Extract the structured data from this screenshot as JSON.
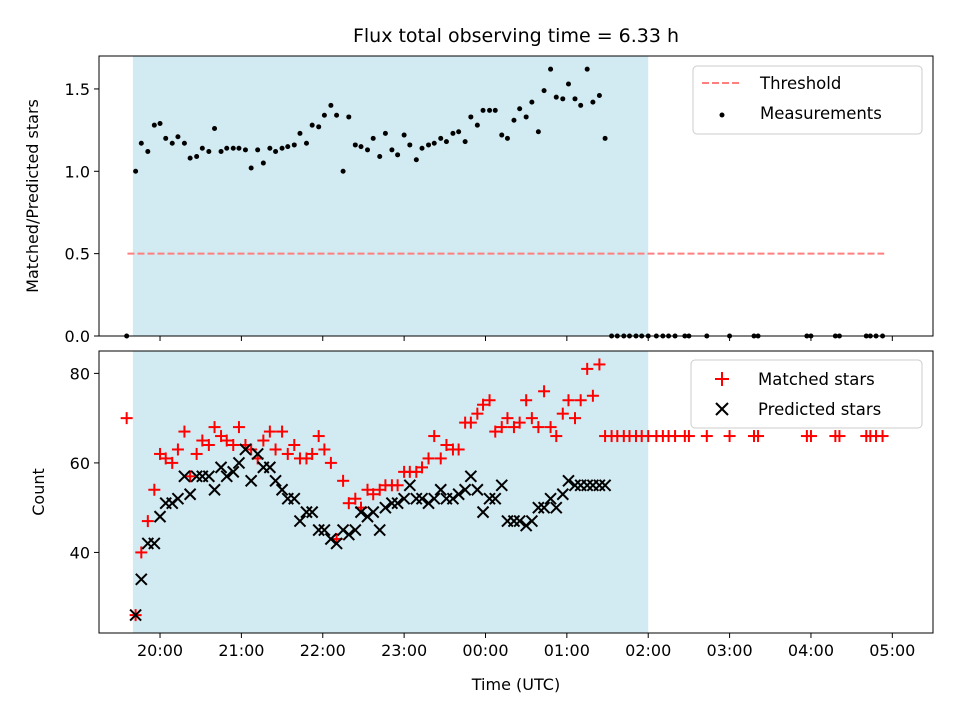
{
  "chart_data": [
    {
      "type": "scatter",
      "title": "Flux total observing time = 6.33 h",
      "xlabel": "",
      "ylabel": "Matched/Predicted stars",
      "xlim": [
        19.25,
        29.5
      ],
      "ylim": [
        0,
        1.7
      ],
      "x_ticks": [
        20,
        21,
        22,
        23,
        24,
        25,
        26,
        27,
        28,
        29
      ],
      "x_tick_labels_shown": false,
      "y_ticks": [
        0.0,
        0.5,
        1.0,
        1.5
      ],
      "y_tick_labels": [
        "0.0",
        "0.5",
        "1.0",
        "1.5"
      ],
      "observing_window": {
        "start": "19:40",
        "end": "02:00",
        "color": "#add8e6"
      },
      "legend": {
        "placement": "upper right",
        "entries": [
          "Threshold",
          "Measurements"
        ]
      },
      "series": [
        {
          "name": "Threshold",
          "style": "dashed-line",
          "color": "#ff7f7f",
          "x": [
            19.6,
            28.9
          ],
          "values": [
            0.5,
            0.5
          ]
        },
        {
          "name": "Measurements",
          "style": "dots",
          "color": "#000000",
          "x": [
            19.59,
            19.7,
            19.77,
            19.85,
            19.93,
            20.0,
            20.07,
            20.15,
            20.22,
            20.3,
            20.37,
            20.45,
            20.52,
            20.6,
            20.67,
            20.75,
            20.82,
            20.9,
            20.97,
            21.05,
            21.12,
            21.2,
            21.27,
            21.35,
            21.42,
            21.5,
            21.57,
            21.65,
            21.72,
            21.8,
            21.87,
            21.95,
            22.02,
            22.1,
            22.17,
            22.25,
            22.32,
            22.4,
            22.47,
            22.55,
            22.62,
            22.7,
            22.77,
            22.85,
            22.92,
            23.0,
            23.07,
            23.15,
            23.22,
            23.3,
            23.37,
            23.45,
            23.52,
            23.6,
            23.67,
            23.75,
            23.82,
            23.9,
            23.97,
            24.05,
            24.12,
            24.2,
            24.27,
            24.35,
            24.42,
            24.5,
            24.57,
            24.65,
            24.72,
            24.8,
            24.87,
            24.95,
            25.02,
            25.1,
            25.17,
            25.25,
            25.32,
            25.4,
            25.47,
            25.55,
            25.62,
            25.7,
            25.77,
            25.85,
            25.92,
            26.0,
            26.1,
            26.18,
            26.25,
            26.33,
            26.45,
            26.5,
            26.72,
            27.0,
            27.3,
            27.35,
            27.95,
            28.0,
            28.3,
            28.35,
            28.68,
            28.73,
            28.8,
            28.88
          ],
          "values": [
            0.0,
            1.0,
            1.17,
            1.12,
            1.28,
            1.29,
            1.2,
            1.17,
            1.21,
            1.17,
            1.08,
            1.09,
            1.14,
            1.12,
            1.26,
            1.12,
            1.14,
            1.14,
            1.14,
            1.13,
            1.02,
            1.13,
            1.05,
            1.14,
            1.12,
            1.14,
            1.15,
            1.16,
            1.23,
            1.17,
            1.28,
            1.27,
            1.34,
            1.4,
            1.34,
            1.0,
            1.33,
            1.16,
            1.15,
            1.13,
            1.2,
            1.09,
            1.23,
            1.13,
            1.1,
            1.22,
            1.16,
            1.07,
            1.14,
            1.16,
            1.17,
            1.2,
            1.18,
            1.23,
            1.24,
            1.18,
            1.33,
            1.28,
            1.37,
            1.37,
            1.37,
            1.22,
            1.2,
            1.31,
            1.38,
            1.33,
            1.42,
            1.24,
            1.49,
            1.62,
            1.45,
            1.44,
            1.53,
            1.44,
            1.4,
            1.62,
            1.42,
            1.46,
            1.2,
            0.0,
            0.0,
            0.0,
            0.0,
            0.0,
            0.0,
            0.0,
            0.0,
            0.0,
            0.0,
            0.0,
            0.0,
            0.0,
            0.0,
            0.0,
            0.0,
            0.0,
            0.0,
            0.0,
            0.0,
            0.0,
            0.0,
            0.0,
            0.0,
            0.0
          ]
        }
      ]
    },
    {
      "type": "scatter",
      "title": "",
      "xlabel": "Time (UTC)",
      "ylabel": "Count",
      "xlim": [
        19.25,
        29.5
      ],
      "ylim": [
        22,
        85
      ],
      "x_ticks": [
        20,
        21,
        22,
        23,
        24,
        25,
        26,
        27,
        28,
        29
      ],
      "x_tick_labels": [
        "20:00",
        "21:00",
        "22:00",
        "23:00",
        "00:00",
        "01:00",
        "02:00",
        "03:00",
        "04:00",
        "05:00"
      ],
      "y_ticks": [
        40,
        60,
        80
      ],
      "y_tick_labels": [
        "40",
        "60",
        "80"
      ],
      "observing_window": {
        "start": "19:40",
        "end": "02:00",
        "color": "#add8e6"
      },
      "legend": {
        "placement": "upper right",
        "entries": [
          "Matched stars",
          "Predicted stars"
        ]
      },
      "series": [
        {
          "name": "Matched stars",
          "marker": "plus",
          "color": "#ff0000",
          "x": [
            19.59,
            19.7,
            19.77,
            19.85,
            19.93,
            20.0,
            20.07,
            20.15,
            20.22,
            20.3,
            20.37,
            20.45,
            20.52,
            20.6,
            20.67,
            20.75,
            20.82,
            20.9,
            20.97,
            21.05,
            21.12,
            21.2,
            21.27,
            21.35,
            21.42,
            21.5,
            21.57,
            21.65,
            21.72,
            21.8,
            21.87,
            21.95,
            22.02,
            22.1,
            22.17,
            22.25,
            22.32,
            22.4,
            22.47,
            22.55,
            22.62,
            22.7,
            22.77,
            22.85,
            22.92,
            23.0,
            23.07,
            23.15,
            23.22,
            23.3,
            23.37,
            23.45,
            23.52,
            23.6,
            23.67,
            23.75,
            23.82,
            23.9,
            23.97,
            24.05,
            24.12,
            24.2,
            24.27,
            24.35,
            24.42,
            24.5,
            24.57,
            24.65,
            24.72,
            24.8,
            24.87,
            24.95,
            25.02,
            25.1,
            25.17,
            25.25,
            25.32,
            25.4,
            25.47,
            25.55,
            25.62,
            25.7,
            25.77,
            25.85,
            25.92,
            26.0,
            26.1,
            26.18,
            26.25,
            26.33,
            26.45,
            26.5,
            26.72,
            27.0,
            27.3,
            27.35,
            27.95,
            28.0,
            28.3,
            28.35,
            28.68,
            28.73,
            28.8,
            28.88
          ],
          "values": [
            70,
            26,
            40,
            47,
            54,
            62,
            61,
            60,
            63,
            67,
            57,
            62,
            65,
            64,
            68,
            66,
            65,
            64,
            68,
            64,
            63,
            61,
            65,
            67,
            63,
            67,
            62,
            64,
            61,
            61,
            62,
            66,
            63,
            60,
            43,
            56,
            51,
            52,
            50,
            54,
            53,
            54,
            55,
            55,
            55,
            58,
            58,
            58,
            59,
            61,
            66,
            61,
            64,
            63,
            63,
            69,
            69,
            71,
            73,
            74,
            67,
            68,
            70,
            68,
            69,
            74,
            70,
            68,
            76,
            68,
            66,
            71,
            74,
            70,
            74,
            81,
            75,
            82,
            66,
            66,
            66,
            66,
            66,
            66,
            66,
            66,
            66,
            66,
            66,
            66,
            66,
            66,
            66,
            66,
            66,
            66,
            66,
            66,
            66,
            66,
            66,
            66,
            66,
            66
          ]
        },
        {
          "name": "Predicted stars",
          "marker": "x",
          "color": "#000000",
          "x": [
            19.7,
            19.77,
            19.85,
            19.93,
            20.0,
            20.07,
            20.15,
            20.22,
            20.3,
            20.37,
            20.45,
            20.52,
            20.6,
            20.67,
            20.75,
            20.82,
            20.9,
            20.97,
            21.05,
            21.12,
            21.2,
            21.27,
            21.35,
            21.42,
            21.5,
            21.57,
            21.65,
            21.72,
            21.8,
            21.87,
            21.95,
            22.02,
            22.1,
            22.17,
            22.25,
            22.32,
            22.4,
            22.47,
            22.55,
            22.62,
            22.7,
            22.77,
            22.85,
            22.92,
            23.0,
            23.07,
            23.15,
            23.22,
            23.3,
            23.37,
            23.45,
            23.52,
            23.6,
            23.67,
            23.75,
            23.82,
            23.9,
            23.97,
            24.05,
            24.12,
            24.2,
            24.27,
            24.35,
            24.42,
            24.5,
            24.57,
            24.65,
            24.72,
            24.8,
            24.87,
            24.95,
            25.02,
            25.1,
            25.17,
            25.25,
            25.32,
            25.4,
            25.47
          ],
          "values": [
            26,
            34,
            42,
            42,
            48,
            51,
            51,
            52,
            57,
            53,
            57,
            57,
            57,
            54,
            59,
            57,
            58,
            60,
            63,
            56,
            62,
            59,
            59,
            56,
            54,
            52,
            52,
            47,
            49,
            49,
            45,
            45,
            43,
            42,
            45,
            44,
            45,
            49,
            48,
            49,
            45,
            50,
            51,
            51,
            52,
            55,
            52,
            52,
            51,
            52,
            54,
            52,
            52,
            53,
            54,
            57,
            54,
            49,
            52,
            52,
            55,
            47,
            47,
            47,
            46,
            47,
            50,
            50,
            52,
            50,
            53,
            56,
            55,
            55,
            55,
            55,
            55,
            55
          ]
        }
      ]
    }
  ]
}
